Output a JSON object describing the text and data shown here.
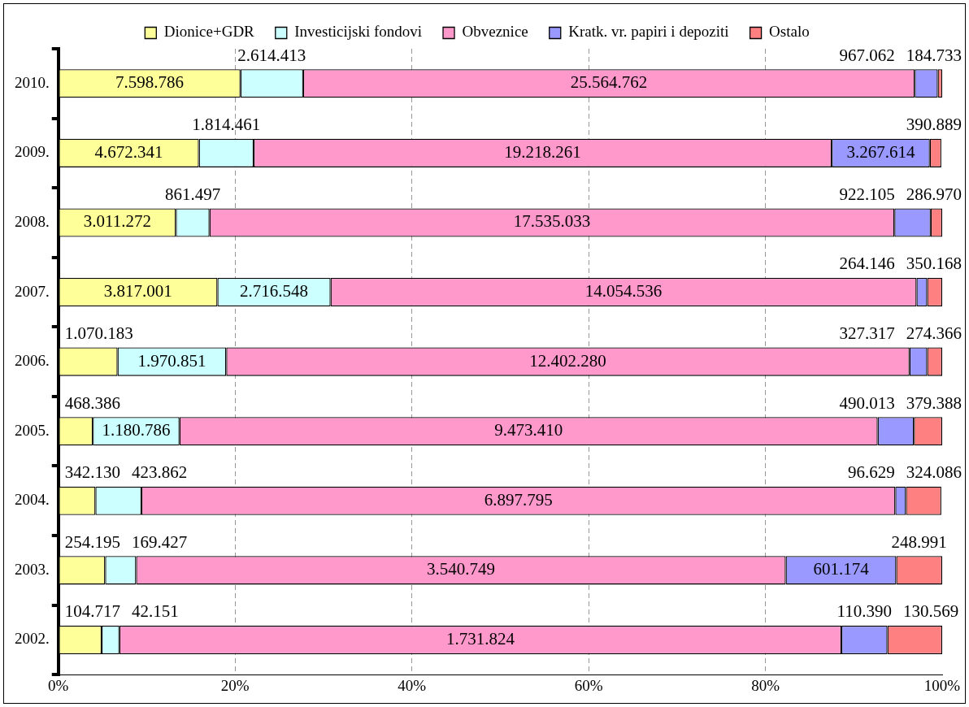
{
  "chart_data": {
    "type": "bar",
    "orientation": "horizontal",
    "stacked": true,
    "categories": [
      "2010.",
      "2009.",
      "2008.",
      "2007.",
      "2006.",
      "2005.",
      "2004.",
      "2003.",
      "2002."
    ],
    "series": [
      {
        "name": "Dionice+GDR",
        "color": "#ffff99",
        "values": [
          20.6,
          15.9,
          13.3,
          18.0,
          6.7,
          3.9,
          4.2,
          5.3,
          4.9
        ]
      },
      {
        "name": "Investicijski fondovi",
        "color": "#ccffff",
        "values": [
          7.1,
          6.2,
          3.8,
          12.8,
          12.3,
          9.8,
          5.2,
          3.5,
          2.0
        ]
      },
      {
        "name": "Obveznice",
        "color": "#ff99cc",
        "values": [
          69.2,
          65.4,
          77.5,
          66.3,
          77.3,
          79.0,
          85.3,
          73.5,
          81.7
        ]
      },
      {
        "name": "Kratk. vr. papiri i depoziti",
        "color": "#9999ff",
        "values": [
          2.6,
          11.1,
          4.1,
          1.2,
          2.0,
          4.1,
          1.2,
          12.5,
          5.2
        ]
      },
      {
        "name": "Ostalo",
        "color": "#ff8080",
        "values": [
          0.5,
          1.3,
          1.3,
          1.7,
          1.7,
          3.2,
          4.0,
          5.2,
          6.2
        ]
      }
    ],
    "annotations": [
      "7.598.786",
      "2.614.413",
      "25.564.762",
      "967.062",
      "184.733",
      "4.672.341",
      "1.814.461",
      "19.218.261",
      "3.267.614",
      "390.889",
      "3.011.272",
      "861.497",
      "17.535.033",
      "922.105",
      "286.970",
      "3.817.001",
      "2.716.548",
      "14.054.536",
      "264.146",
      "350.168",
      "1.070.183",
      "1.970.851",
      "12.402.280",
      "327.317",
      "274.366",
      "468.386",
      "1.180.786",
      "9.473.410",
      "490.013",
      "379.388",
      "342.130",
      "423.862",
      "6.897.795",
      "96.629",
      "324.086",
      "254.195",
      "169.427",
      "3.540.749",
      "601.174",
      "248.991",
      "104.717",
      "42.151",
      "1.731.824",
      "110.390",
      "130.569"
    ],
    "xlim": [
      0,
      100
    ],
    "xticks": [
      {
        "value": 0,
        "label": "0%"
      },
      {
        "value": 20,
        "label": "20%"
      },
      {
        "value": 40,
        "label": "40%"
      },
      {
        "value": 60,
        "label": "60%"
      },
      {
        "value": 80,
        "label": "80%"
      },
      {
        "value": 100,
        "label": "100%"
      }
    ],
    "grid": "x",
    "legend": "top"
  }
}
